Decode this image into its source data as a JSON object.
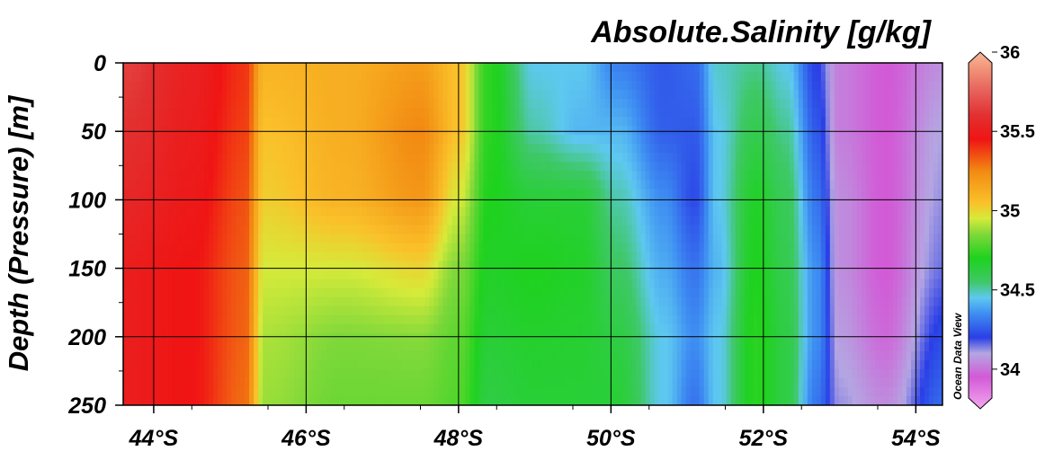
{
  "chart_data": {
    "type": "heatmap",
    "title": "Absolute.Salinity [g/kg]",
    "ylabel": "Depth (Pressure) [m]",
    "xlabel": "",
    "watermark": "Ocean Data View",
    "xlim": [
      43.6,
      54.35
    ],
    "ylim": [
      250,
      0
    ],
    "x_ticks": [
      {
        "value": 44,
        "label": "44°S"
      },
      {
        "value": 46,
        "label": "46°S"
      },
      {
        "value": 48,
        "label": "48°S"
      },
      {
        "value": 50,
        "label": "50°S"
      },
      {
        "value": 52,
        "label": "52°S"
      },
      {
        "value": 54,
        "label": "54°S"
      }
    ],
    "y_ticks": [
      {
        "value": 0,
        "label": "0"
      },
      {
        "value": 50,
        "label": "50"
      },
      {
        "value": 100,
        "label": "100"
      },
      {
        "value": 150,
        "label": "150"
      },
      {
        "value": 200,
        "label": "200"
      },
      {
        "value": 250,
        "label": "250"
      }
    ],
    "grid": true,
    "colorbar": {
      "range": [
        33.75,
        36
      ],
      "ticks": [
        {
          "value": 34,
          "label": "34"
        },
        {
          "value": 34.5,
          "label": "34.5"
        },
        {
          "value": 35,
          "label": "35"
        },
        {
          "value": 35.5,
          "label": "35.5"
        },
        {
          "value": 36,
          "label": "36"
        }
      ],
      "stops": [
        {
          "value": 33.75,
          "color": "#f3a8f0"
        },
        {
          "value": 33.95,
          "color": "#d25ad6"
        },
        {
          "value": 34.1,
          "color": "#b4a6e2"
        },
        {
          "value": 34.2,
          "color": "#2a3fe6"
        },
        {
          "value": 34.35,
          "color": "#3e8ef2"
        },
        {
          "value": 34.45,
          "color": "#5ec8f0"
        },
        {
          "value": 34.55,
          "color": "#3fc868"
        },
        {
          "value": 34.7,
          "color": "#1ed21e"
        },
        {
          "value": 34.85,
          "color": "#7ed83a"
        },
        {
          "value": 34.95,
          "color": "#d6ea3a"
        },
        {
          "value": 35.05,
          "color": "#fac12a"
        },
        {
          "value": 35.25,
          "color": "#f28a12"
        },
        {
          "value": 35.45,
          "color": "#f01414"
        },
        {
          "value": 35.6,
          "color": "#e23030"
        },
        {
          "value": 35.75,
          "color": "#e6605a"
        },
        {
          "value": 35.9,
          "color": "#f2957a"
        },
        {
          "value": 36,
          "color": "#f9b89a"
        }
      ]
    },
    "depths": [
      0,
      50,
      100,
      150,
      200,
      250
    ],
    "stations": [
      {
        "lat": 43.6,
        "salinity": [
          35.65,
          35.6,
          35.55,
          35.5,
          35.5,
          35.5
        ]
      },
      {
        "lat": 44.5,
        "salinity": [
          35.52,
          35.5,
          35.48,
          35.45,
          35.45,
          35.45
        ]
      },
      {
        "lat": 45.2,
        "salinity": [
          35.4,
          35.38,
          35.35,
          35.33,
          35.32,
          35.3
        ]
      },
      {
        "lat": 45.45,
        "salinity": [
          35.1,
          35.05,
          35.02,
          34.95,
          34.9,
          34.88
        ]
      },
      {
        "lat": 46.5,
        "salinity": [
          35.12,
          35.12,
          35.1,
          34.95,
          34.85,
          34.82
        ]
      },
      {
        "lat": 47.5,
        "salinity": [
          35.18,
          35.25,
          35.2,
          35.0,
          34.86,
          34.82
        ]
      },
      {
        "lat": 48.0,
        "salinity": [
          35.05,
          35.05,
          34.95,
          34.85,
          34.8,
          34.78
        ]
      },
      {
        "lat": 48.4,
        "salinity": [
          34.72,
          34.72,
          34.7,
          34.68,
          34.65,
          34.62
        ]
      },
      {
        "lat": 49.0,
        "salinity": [
          34.45,
          34.5,
          34.65,
          34.7,
          34.67,
          34.65
        ]
      },
      {
        "lat": 49.6,
        "salinity": [
          34.45,
          34.42,
          34.65,
          34.68,
          34.66,
          34.65
        ]
      },
      {
        "lat": 50.1,
        "salinity": [
          34.32,
          34.42,
          34.5,
          34.56,
          34.62,
          34.65
        ]
      },
      {
        "lat": 50.7,
        "salinity": [
          34.25,
          34.26,
          34.35,
          34.4,
          34.45,
          34.45
        ]
      },
      {
        "lat": 51.1,
        "salinity": [
          34.28,
          34.25,
          34.22,
          34.3,
          34.35,
          34.3
        ]
      },
      {
        "lat": 51.4,
        "salinity": [
          34.48,
          34.45,
          34.45,
          34.42,
          34.45,
          34.45
        ]
      },
      {
        "lat": 51.9,
        "salinity": [
          34.52,
          34.6,
          34.68,
          34.7,
          34.72,
          34.72
        ]
      },
      {
        "lat": 52.3,
        "salinity": [
          34.45,
          34.52,
          34.58,
          34.6,
          34.62,
          34.62
        ]
      },
      {
        "lat": 52.7,
        "salinity": [
          34.2,
          34.25,
          34.3,
          34.35,
          34.35,
          34.3
        ]
      },
      {
        "lat": 53.0,
        "salinity": [
          34.02,
          34.02,
          34.05,
          34.05,
          34.08,
          34.12
        ]
      },
      {
        "lat": 53.6,
        "salinity": [
          33.95,
          33.95,
          33.95,
          33.95,
          33.98,
          34.05
        ]
      },
      {
        "lat": 54.35,
        "salinity": [
          34.05,
          34.1,
          34.12,
          34.15,
          34.22,
          34.28
        ]
      }
    ]
  }
}
